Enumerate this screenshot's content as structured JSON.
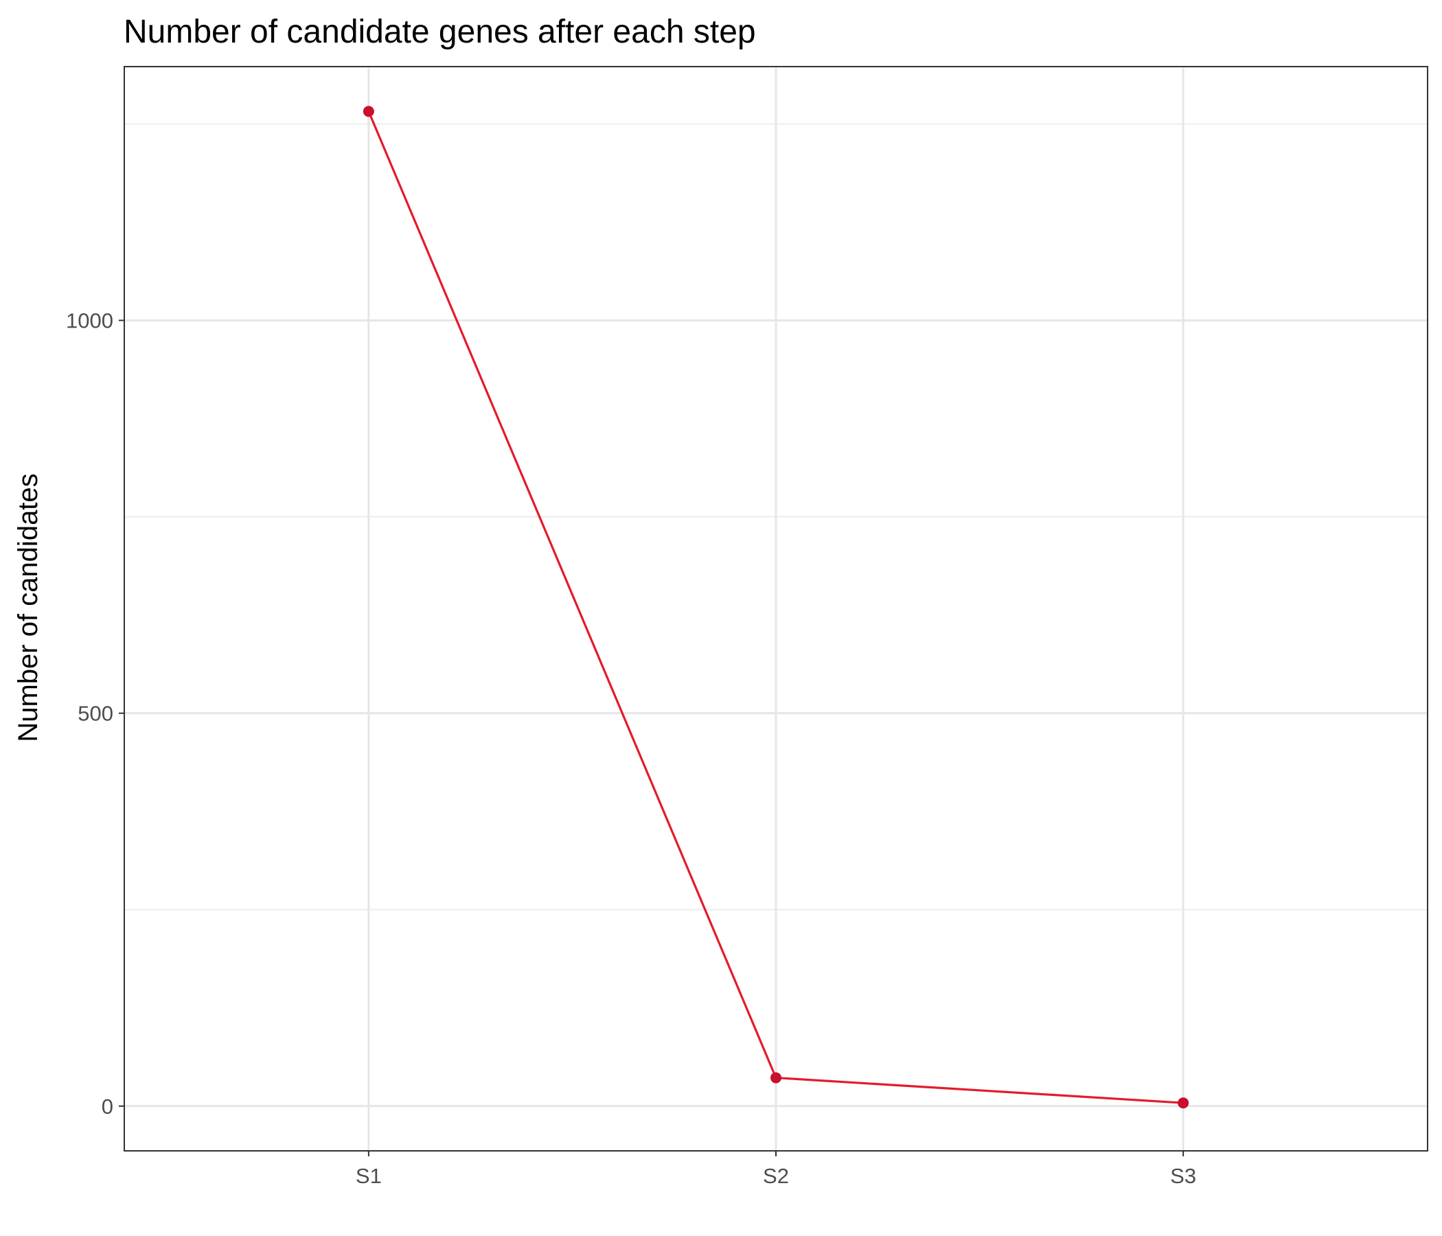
{
  "chart_data": {
    "type": "line",
    "title": "Number of candidate genes after each step",
    "xlabel": "",
    "ylabel": "Number of candidates",
    "categories": [
      "S1",
      "S2",
      "S3"
    ],
    "series": [
      {
        "values": [
          1266,
          36,
          4
        ]
      }
    ],
    "yticks": [
      0,
      500,
      1000
    ],
    "yticklabels": [
      "0",
      "500",
      "1000"
    ],
    "ylim": [
      -57,
      1323
    ],
    "grid": true,
    "legend": "none",
    "colors": {
      "line": "#E41A2C",
      "point": "#C8102E",
      "grid_major": "#E6E6E6",
      "grid_minor": "#EDEDED",
      "panel_border": "#333333",
      "tick_text": "#4D4D4D"
    }
  }
}
